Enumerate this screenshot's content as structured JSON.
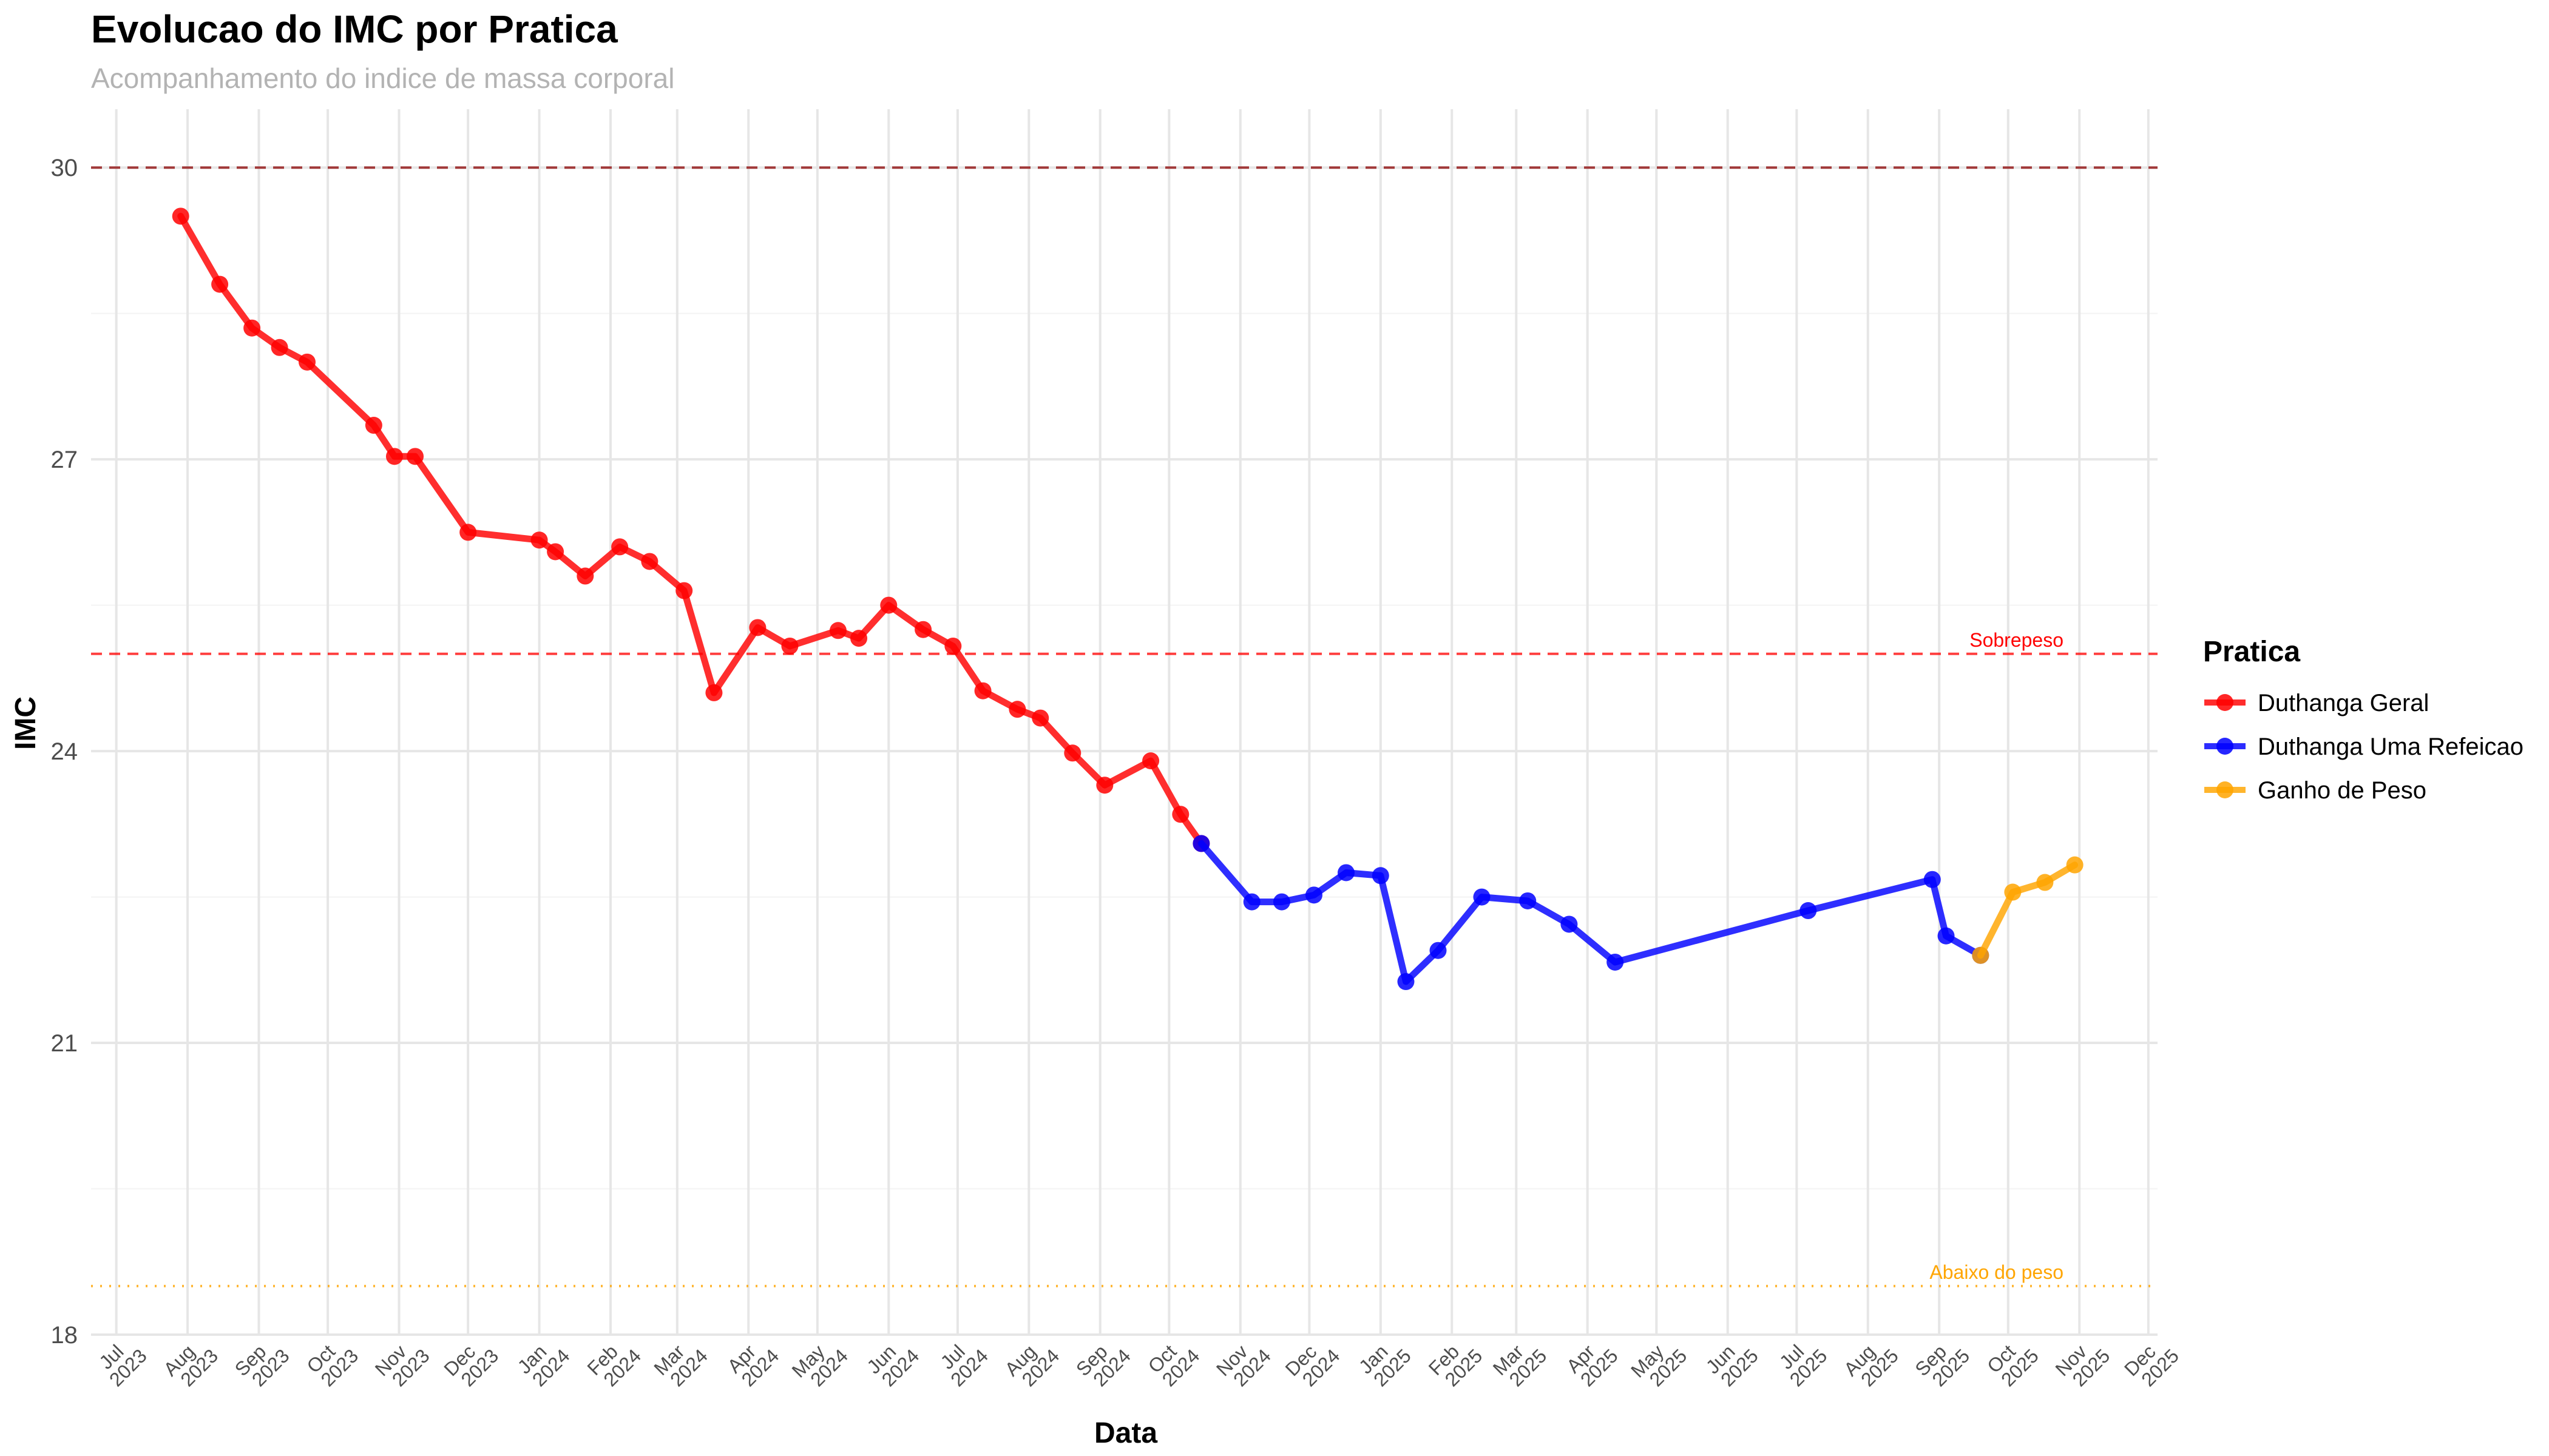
{
  "chart_data": {
    "type": "line",
    "title": "Evolucao do IMC por Pratica",
    "subtitle": "Acompanhamento do indice de massa corporal",
    "xlabel": "Data",
    "ylabel": "IMC",
    "ylim": [
      18,
      30.6
    ],
    "yticks": [
      18,
      21,
      24,
      27,
      30
    ],
    "xlim": [
      "2023-06-20",
      "2025-12-05"
    ],
    "xticks": [
      {
        "date": "2023-07-01",
        "label": [
          "Jul",
          "2023"
        ]
      },
      {
        "date": "2023-08-01",
        "label": [
          "Aug",
          "2023"
        ]
      },
      {
        "date": "2023-09-01",
        "label": [
          "Sep",
          "2023"
        ]
      },
      {
        "date": "2023-10-01",
        "label": [
          "Oct",
          "2023"
        ]
      },
      {
        "date": "2023-11-01",
        "label": [
          "Nov",
          "2023"
        ]
      },
      {
        "date": "2023-12-01",
        "label": [
          "Dec",
          "2023"
        ]
      },
      {
        "date": "2024-01-01",
        "label": [
          "Jan",
          "2024"
        ]
      },
      {
        "date": "2024-02-01",
        "label": [
          "Feb",
          "2024"
        ]
      },
      {
        "date": "2024-03-01",
        "label": [
          "Mar",
          "2024"
        ]
      },
      {
        "date": "2024-04-01",
        "label": [
          "Apr",
          "2024"
        ]
      },
      {
        "date": "2024-05-01",
        "label": [
          "May",
          "2024"
        ]
      },
      {
        "date": "2024-06-01",
        "label": [
          "Jun",
          "2024"
        ]
      },
      {
        "date": "2024-07-01",
        "label": [
          "Jul",
          "2024"
        ]
      },
      {
        "date": "2024-08-01",
        "label": [
          "Aug",
          "2024"
        ]
      },
      {
        "date": "2024-09-01",
        "label": [
          "Sep",
          "2024"
        ]
      },
      {
        "date": "2024-10-01",
        "label": [
          "Oct",
          "2024"
        ]
      },
      {
        "date": "2024-11-01",
        "label": [
          "Nov",
          "2024"
        ]
      },
      {
        "date": "2024-12-01",
        "label": [
          "Dec",
          "2024"
        ]
      },
      {
        "date": "2025-01-01",
        "label": [
          "Jan",
          "2025"
        ]
      },
      {
        "date": "2025-02-01",
        "label": [
          "Feb",
          "2025"
        ]
      },
      {
        "date": "2025-03-01",
        "label": [
          "Mar",
          "2025"
        ]
      },
      {
        "date": "2025-04-01",
        "label": [
          "Apr",
          "2025"
        ]
      },
      {
        "date": "2025-05-01",
        "label": [
          "May",
          "2025"
        ]
      },
      {
        "date": "2025-06-01",
        "label": [
          "Jun",
          "2025"
        ]
      },
      {
        "date": "2025-07-01",
        "label": [
          "Jul",
          "2025"
        ]
      },
      {
        "date": "2025-08-01",
        "label": [
          "Aug",
          "2025"
        ]
      },
      {
        "date": "2025-09-01",
        "label": [
          "Sep",
          "2025"
        ]
      },
      {
        "date": "2025-10-01",
        "label": [
          "Oct",
          "2025"
        ]
      },
      {
        "date": "2025-11-01",
        "label": [
          "Nov",
          "2025"
        ]
      },
      {
        "date": "2025-12-01",
        "label": [
          "Dec",
          "2025"
        ]
      }
    ],
    "reference_lines": [
      {
        "y": 30,
        "style": "dashed",
        "color": "#8b0000",
        "label": ""
      },
      {
        "y": 25,
        "style": "dashed",
        "color": "#ff0000",
        "label": "Sobrepeso"
      },
      {
        "y": 18.5,
        "style": "dotted",
        "color": "#ffa500",
        "label": "Abaixo do peso"
      }
    ],
    "legend": {
      "title": "Pratica",
      "position": "right"
    },
    "grid": true,
    "series": [
      {
        "name": "Duthanga Geral",
        "color": "#ff0000",
        "points": [
          {
            "x": "2023-07-29",
            "y": 29.5
          },
          {
            "x": "2023-08-15",
            "y": 28.8
          },
          {
            "x": "2023-08-29",
            "y": 28.35
          },
          {
            "x": "2023-09-10",
            "y": 28.15
          },
          {
            "x": "2023-09-22",
            "y": 28.0
          },
          {
            "x": "2023-10-21",
            "y": 27.35
          },
          {
            "x": "2023-10-30",
            "y": 27.03
          },
          {
            "x": "2023-11-08",
            "y": 27.03
          },
          {
            "x": "2023-12-01",
            "y": 26.25
          },
          {
            "x": "2024-01-01",
            "y": 26.17
          },
          {
            "x": "2024-01-08",
            "y": 26.05
          },
          {
            "x": "2024-01-21",
            "y": 25.8
          },
          {
            "x": "2024-02-05",
            "y": 26.1
          },
          {
            "x": "2024-02-18",
            "y": 25.95
          },
          {
            "x": "2024-03-04",
            "y": 25.65
          },
          {
            "x": "2024-03-17",
            "y": 24.6
          },
          {
            "x": "2024-04-05",
            "y": 25.27
          },
          {
            "x": "2024-04-19",
            "y": 25.08
          },
          {
            "x": "2024-05-10",
            "y": 25.24
          },
          {
            "x": "2024-05-19",
            "y": 25.16
          },
          {
            "x": "2024-06-01",
            "y": 25.5
          },
          {
            "x": "2024-06-16",
            "y": 25.25
          },
          {
            "x": "2024-06-29",
            "y": 25.08
          },
          {
            "x": "2024-07-12",
            "y": 24.62
          },
          {
            "x": "2024-07-27",
            "y": 24.43
          },
          {
            "x": "2024-08-06",
            "y": 24.34
          },
          {
            "x": "2024-08-20",
            "y": 23.98
          },
          {
            "x": "2024-09-03",
            "y": 23.65
          },
          {
            "x": "2024-09-23",
            "y": 23.9
          },
          {
            "x": "2024-10-06",
            "y": 23.35
          },
          {
            "x": "2024-10-15",
            "y": 23.05
          }
        ]
      },
      {
        "name": "Duthanga Uma Refeicao",
        "color": "#0000ff",
        "points": [
          {
            "x": "2024-10-15",
            "y": 23.05
          },
          {
            "x": "2024-11-06",
            "y": 22.45
          },
          {
            "x": "2024-11-19",
            "y": 22.45
          },
          {
            "x": "2024-12-03",
            "y": 22.52
          },
          {
            "x": "2024-12-17",
            "y": 22.75
          },
          {
            "x": "2025-01-01",
            "y": 22.72
          },
          {
            "x": "2025-01-12",
            "y": 21.63
          },
          {
            "x": "2025-01-26",
            "y": 21.95
          },
          {
            "x": "2025-02-14",
            "y": 22.5
          },
          {
            "x": "2025-03-06",
            "y": 22.46
          },
          {
            "x": "2025-03-24",
            "y": 22.22
          },
          {
            "x": "2025-04-13",
            "y": 21.83
          },
          {
            "x": "2025-07-06",
            "y": 22.36
          },
          {
            "x": "2025-08-29",
            "y": 22.68
          },
          {
            "x": "2025-09-04",
            "y": 22.1
          },
          {
            "x": "2025-09-19",
            "y": 21.9
          }
        ]
      },
      {
        "name": "Ganho de Peso",
        "color": "#ffa500",
        "points": [
          {
            "x": "2025-09-19",
            "y": 21.9
          },
          {
            "x": "2025-10-03",
            "y": 22.55
          },
          {
            "x": "2025-10-17",
            "y": 22.65
          },
          {
            "x": "2025-10-30",
            "y": 22.83
          }
        ]
      }
    ]
  }
}
